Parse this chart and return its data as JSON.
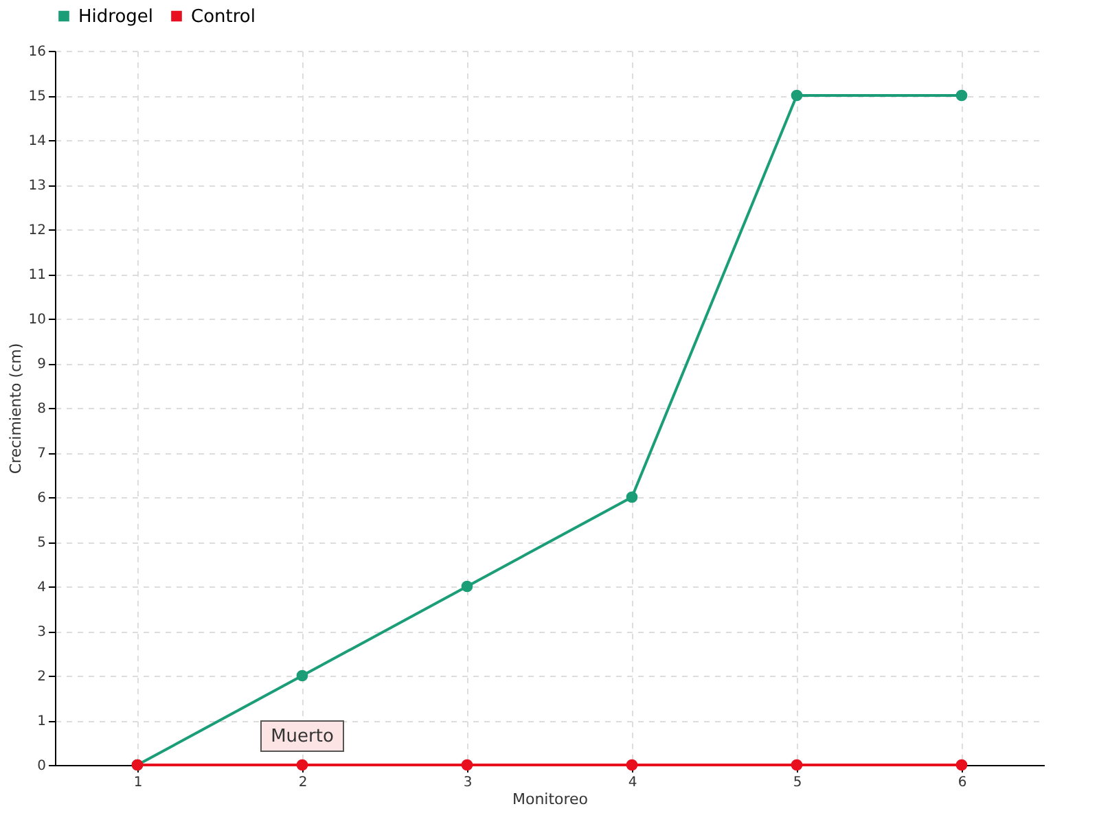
{
  "chart_data": {
    "type": "line",
    "xlabel": "Monitoreo",
    "ylabel": "Crecimiento (cm)",
    "categories": [
      "1",
      "2",
      "3",
      "4",
      "5",
      "6"
    ],
    "series": [
      {
        "name": "Hidrogel",
        "color": "#1b9e77",
        "values": [
          0,
          2,
          4,
          6,
          15,
          15
        ]
      },
      {
        "name": "Control",
        "color": "#e8101f",
        "values": [
          0,
          0,
          0,
          0,
          0,
          0
        ]
      }
    ],
    "ylim": [
      0,
      16
    ],
    "yticks": [
      0,
      1,
      2,
      3,
      4,
      5,
      6,
      7,
      8,
      9,
      10,
      11,
      12,
      13,
      14,
      15,
      16
    ],
    "grid": true,
    "legend": "top left",
    "marker": "circle",
    "line_style": "solid",
    "annotations": [
      {
        "text": "Muerto",
        "x": "2",
        "y": 0
      }
    ]
  }
}
